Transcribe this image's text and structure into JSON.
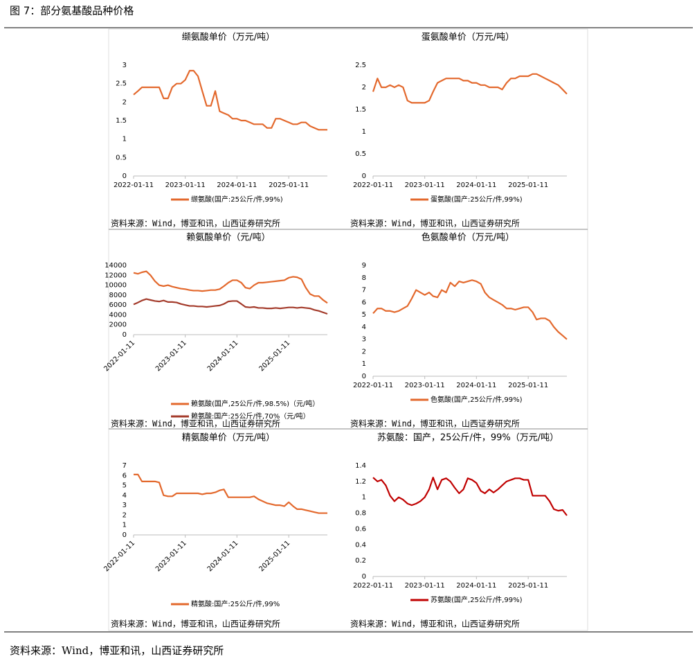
{
  "figure_title": "图 7：部分氨基酸品种价格",
  "footer": "资料来源：Wind，博亚和讯，山西证券研究所",
  "chart_data": [
    {
      "type": "line",
      "title": "缬氨酸单价（万元/吨）",
      "source": "资料来源：Wind，博亚和讯，山西证券研究所",
      "x": [
        "2022-01-11",
        "2022-02-11",
        "2022-03-11",
        "2022-04-11",
        "2022-05-11",
        "2022-06-11",
        "2022-07-11",
        "2022-08-11",
        "2022-09-11",
        "2022-10-11",
        "2022-11-11",
        "2022-12-11",
        "2023-01-11",
        "2023-02-11",
        "2023-03-11",
        "2023-04-11",
        "2023-05-11",
        "2023-06-11",
        "2023-07-11",
        "2023-08-11",
        "2023-09-11",
        "2023-10-11",
        "2023-11-11",
        "2023-12-11",
        "2024-01-11",
        "2024-02-11",
        "2024-03-11",
        "2024-04-11",
        "2024-05-11",
        "2024-06-11",
        "2024-07-11",
        "2024-08-11",
        "2024-09-11",
        "2024-10-11",
        "2024-11-11",
        "2024-12-11",
        "2025-01-11",
        "2025-02-11",
        "2025-03-11",
        "2025-04-11",
        "2025-05-11",
        "2025-06-11",
        "2025-07-11",
        "2025-08-11",
        "2025-09-11",
        "2025-10-11"
      ],
      "series": [
        {
          "name": "缬氨酸(国产:25公斤/件,99%)",
          "color": "#e3682c",
          "values": [
            2.2,
            2.3,
            2.4,
            2.4,
            2.4,
            2.4,
            2.4,
            2.1,
            2.1,
            2.4,
            2.5,
            2.5,
            2.6,
            2.85,
            2.85,
            2.7,
            2.3,
            1.9,
            1.9,
            2.3,
            1.75,
            1.7,
            1.65,
            1.55,
            1.55,
            1.5,
            1.5,
            1.45,
            1.4,
            1.4,
            1.4,
            1.3,
            1.3,
            1.55,
            1.55,
            1.5,
            1.45,
            1.4,
            1.4,
            1.45,
            1.45,
            1.35,
            1.3,
            1.25,
            1.25,
            1.25
          ]
        }
      ],
      "xlim": [
        "2022-01-11",
        "2025-10-11"
      ],
      "xticks": [
        "2022-01-11",
        "2023-01-11",
        "2024-01-11",
        "2025-01-11"
      ],
      "ylim": [
        0,
        3
      ],
      "yticks": [
        0,
        0.5,
        1,
        1.5,
        2,
        2.5,
        3
      ],
      "xtick_rotation": 0
    },
    {
      "type": "line",
      "title": "蛋氨酸单价（万元/吨）",
      "source": "资料来源：Wind，博亚和讯，山西证券研究所",
      "x": [
        "2022-01-11",
        "2022-02-11",
        "2022-03-11",
        "2022-04-11",
        "2022-05-11",
        "2022-06-11",
        "2022-07-11",
        "2022-08-11",
        "2022-09-11",
        "2022-10-11",
        "2022-11-11",
        "2022-12-11",
        "2023-01-11",
        "2023-02-11",
        "2023-03-11",
        "2023-04-11",
        "2023-05-11",
        "2023-06-11",
        "2023-07-11",
        "2023-08-11",
        "2023-09-11",
        "2023-10-11",
        "2023-11-11",
        "2023-12-11",
        "2024-01-11",
        "2024-02-11",
        "2024-03-11",
        "2024-04-11",
        "2024-05-11",
        "2024-06-11",
        "2024-07-11",
        "2024-08-11",
        "2024-09-11",
        "2024-10-11",
        "2024-11-11",
        "2024-12-11",
        "2025-01-11",
        "2025-02-11",
        "2025-03-11",
        "2025-04-11",
        "2025-05-11",
        "2025-06-11",
        "2025-07-11",
        "2025-08-11",
        "2025-09-11",
        "2025-10-11"
      ],
      "series": [
        {
          "name": "蛋氨酸(国产:25公斤/件,99%)",
          "color": "#e3682c",
          "values": [
            1.9,
            2.2,
            2.0,
            2.0,
            2.05,
            2.0,
            2.05,
            2.0,
            1.7,
            1.65,
            1.65,
            1.65,
            1.65,
            1.7,
            1.9,
            2.1,
            2.15,
            2.2,
            2.2,
            2.2,
            2.2,
            2.15,
            2.15,
            2.1,
            2.1,
            2.05,
            2.05,
            2.0,
            2.0,
            2.0,
            1.95,
            2.1,
            2.2,
            2.2,
            2.25,
            2.25,
            2.25,
            2.3,
            2.3,
            2.25,
            2.2,
            2.15,
            2.1,
            2.05,
            1.95,
            1.85
          ]
        }
      ],
      "xlim": [
        "2022-01-11",
        "2025-10-11"
      ],
      "xticks": [
        "2022-01-11",
        "2023-01-11",
        "2024-01-11",
        "2025-01-11"
      ],
      "ylim": [
        0,
        2.5
      ],
      "yticks": [
        0,
        0.5,
        1,
        1.5,
        2,
        2.5
      ],
      "xtick_rotation": 0
    },
    {
      "type": "line",
      "title": "赖氨酸单价（元/吨）",
      "source": "资料来源：Wind，博亚和讯，山西证券研究所",
      "x": [
        "2022-01-11",
        "2022-02-11",
        "2022-03-11",
        "2022-04-11",
        "2022-05-11",
        "2022-06-11",
        "2022-07-11",
        "2022-08-11",
        "2022-09-11",
        "2022-10-11",
        "2022-11-11",
        "2022-12-11",
        "2023-01-11",
        "2023-02-11",
        "2023-03-11",
        "2023-04-11",
        "2023-05-11",
        "2023-06-11",
        "2023-07-11",
        "2023-08-11",
        "2023-09-11",
        "2023-10-11",
        "2023-11-11",
        "2023-12-11",
        "2024-01-11",
        "2024-02-11",
        "2024-03-11",
        "2024-04-11",
        "2024-05-11",
        "2024-06-11",
        "2024-07-11",
        "2024-08-11",
        "2024-09-11",
        "2024-10-11",
        "2024-11-11",
        "2024-12-11",
        "2025-01-11",
        "2025-02-11",
        "2025-03-11",
        "2025-04-11",
        "2025-05-11",
        "2025-06-11",
        "2025-07-11",
        "2025-08-11",
        "2025-09-11",
        "2025-10-11"
      ],
      "series": [
        {
          "name": "赖氨酸(国产,25公斤/件,98.5%)（元/吨）",
          "color": "#e3682c",
          "values": [
            12500,
            12300,
            12600,
            12800,
            12000,
            10800,
            10000,
            9800,
            10000,
            9700,
            9500,
            9300,
            9200,
            9000,
            8900,
            8900,
            8800,
            8900,
            9000,
            9000,
            9200,
            9800,
            10500,
            11000,
            11000,
            10500,
            9500,
            9300,
            10000,
            10500,
            10500,
            10600,
            10700,
            10800,
            10900,
            11000,
            11500,
            11700,
            11600,
            11200,
            9500,
            8200,
            7800,
            7800,
            7000,
            6400
          ]
        },
        {
          "name": "赖氨酸:国产:25公斤/件,70%（元/吨）",
          "color": "#a33a2a",
          "values": [
            6100,
            6500,
            6900,
            7200,
            7000,
            6800,
            6700,
            6900,
            6600,
            6600,
            6500,
            6200,
            6000,
            5800,
            5800,
            5700,
            5700,
            5600,
            5700,
            5800,
            5900,
            6200,
            6700,
            6800,
            6800,
            6200,
            5600,
            5500,
            5600,
            5400,
            5400,
            5300,
            5300,
            5400,
            5300,
            5400,
            5500,
            5500,
            5400,
            5500,
            5400,
            5300,
            5000,
            4800,
            4500,
            4200
          ]
        }
      ],
      "xlim": [
        "2022-01-11",
        "2025-10-11"
      ],
      "xticks": [
        "2022-01-11",
        "2023-01-11",
        "2024-01-11",
        "2025-01-11"
      ],
      "ylim": [
        0,
        14000
      ],
      "yticks": [
        0,
        2000,
        4000,
        6000,
        8000,
        10000,
        12000,
        14000
      ],
      "xtick_rotation": 45
    },
    {
      "type": "line",
      "title": "色氨酸单价（万元/吨）",
      "source": "资料来源：Wind，博亚和讯，山西证券研究所",
      "x": [
        "2022-01-11",
        "2022-02-11",
        "2022-03-11",
        "2022-04-11",
        "2022-05-11",
        "2022-06-11",
        "2022-07-11",
        "2022-08-11",
        "2022-09-11",
        "2022-10-11",
        "2022-11-11",
        "2022-12-11",
        "2023-01-11",
        "2023-02-11",
        "2023-03-11",
        "2023-04-11",
        "2023-05-11",
        "2023-06-11",
        "2023-07-11",
        "2023-08-11",
        "2023-09-11",
        "2023-10-11",
        "2023-11-11",
        "2023-12-11",
        "2024-01-11",
        "2024-02-11",
        "2024-03-11",
        "2024-04-11",
        "2024-05-11",
        "2024-06-11",
        "2024-07-11",
        "2024-08-11",
        "2024-09-11",
        "2024-10-11",
        "2024-11-11",
        "2024-12-11",
        "2025-01-11",
        "2025-02-11",
        "2025-03-11",
        "2025-04-11",
        "2025-05-11",
        "2025-06-11",
        "2025-07-11",
        "2025-08-11",
        "2025-09-11",
        "2025-10-11"
      ],
      "series": [
        {
          "name": "色氨酸(国产,25公斤/件,99%)",
          "color": "#e3682c",
          "values": [
            5.1,
            5.5,
            5.5,
            5.3,
            5.3,
            5.2,
            5.3,
            5.5,
            5.7,
            6.3,
            7.0,
            6.8,
            6.6,
            6.8,
            6.5,
            6.4,
            7.0,
            6.8,
            7.6,
            7.3,
            7.7,
            7.6,
            7.7,
            7.8,
            7.7,
            7.5,
            6.8,
            6.4,
            6.2,
            6.0,
            5.8,
            5.5,
            5.5,
            5.4,
            5.5,
            5.6,
            5.6,
            5.2,
            4.6,
            4.7,
            4.7,
            4.5,
            4.0,
            3.6,
            3.3,
            3.0
          ]
        }
      ],
      "xlim": [
        "2022-01-11",
        "2025-10-11"
      ],
      "xticks": [
        "2022-01-11",
        "2023-01-11",
        "2024-01-11",
        "2025-01-11"
      ],
      "ylim": [
        0,
        9
      ],
      "yticks": [
        0,
        1,
        2,
        3,
        4,
        5,
        6,
        7,
        8,
        9
      ],
      "xtick_rotation": 0
    },
    {
      "type": "line",
      "title": "精氨酸单价（万元/吨）",
      "source": "资料来源：Wind，博亚和讯，山西证券研究所",
      "x": [
        "2022-01-11",
        "2022-02-11",
        "2022-03-11",
        "2022-04-11",
        "2022-05-11",
        "2022-06-11",
        "2022-07-11",
        "2022-08-11",
        "2022-09-11",
        "2022-10-11",
        "2022-11-11",
        "2022-12-11",
        "2023-01-11",
        "2023-02-11",
        "2023-03-11",
        "2023-04-11",
        "2023-05-11",
        "2023-06-11",
        "2023-07-11",
        "2023-08-11",
        "2023-09-11",
        "2023-10-11",
        "2023-11-11",
        "2023-12-11",
        "2024-01-11",
        "2024-02-11",
        "2024-03-11",
        "2024-04-11",
        "2024-05-11",
        "2024-06-11",
        "2024-07-11",
        "2024-08-11",
        "2024-09-11",
        "2024-10-11",
        "2024-11-11",
        "2024-12-11",
        "2025-01-11",
        "2025-02-11",
        "2025-03-11",
        "2025-04-11",
        "2025-05-11",
        "2025-06-11",
        "2025-07-11",
        "2025-08-11",
        "2025-09-11",
        "2025-10-11"
      ],
      "series": [
        {
          "name": "精氨酸:国产:25公斤/件,99%",
          "color": "#e3682c",
          "values": [
            6.1,
            6.1,
            5.4,
            5.4,
            5.4,
            5.4,
            5.3,
            4.0,
            3.9,
            3.9,
            4.2,
            4.2,
            4.2,
            4.2,
            4.2,
            4.2,
            4.1,
            4.2,
            4.2,
            4.3,
            4.5,
            4.6,
            3.8,
            3.8,
            3.8,
            3.8,
            3.8,
            3.8,
            3.9,
            3.6,
            3.4,
            3.2,
            3.1,
            3.0,
            3.0,
            2.9,
            3.3,
            2.9,
            2.6,
            2.6,
            2.5,
            2.4,
            2.3,
            2.2,
            2.2,
            2.2
          ]
        }
      ],
      "xlim": [
        "2022-01-11",
        "2025-10-11"
      ],
      "xticks": [
        "2022-01-11",
        "2023-01-11",
        "2024-01-11",
        "2025-01-11"
      ],
      "ylim": [
        0,
        7
      ],
      "yticks": [
        0,
        1,
        2,
        3,
        4,
        5,
        6,
        7
      ],
      "xtick_rotation": 45
    },
    {
      "type": "line",
      "title": "苏氨酸：国产，25公斤/件，99%（万元/吨）",
      "source": "资料来源：Wind，博亚和讯，山西证券研究所",
      "x": [
        "2022-01-11",
        "2022-02-11",
        "2022-03-11",
        "2022-04-11",
        "2022-05-11",
        "2022-06-11",
        "2022-07-11",
        "2022-08-11",
        "2022-09-11",
        "2022-10-11",
        "2022-11-11",
        "2022-12-11",
        "2023-01-11",
        "2023-02-11",
        "2023-03-11",
        "2023-04-11",
        "2023-05-11",
        "2023-06-11",
        "2023-07-11",
        "2023-08-11",
        "2023-09-11",
        "2023-10-11",
        "2023-11-11",
        "2023-12-11",
        "2024-01-11",
        "2024-02-11",
        "2024-03-11",
        "2024-04-11",
        "2024-05-11",
        "2024-06-11",
        "2024-07-11",
        "2024-08-11",
        "2024-09-11",
        "2024-10-11",
        "2024-11-11",
        "2024-12-11",
        "2025-01-11",
        "2025-02-11",
        "2025-03-11",
        "2025-04-11",
        "2025-05-11",
        "2025-06-11",
        "2025-07-11",
        "2025-08-11",
        "2025-09-11",
        "2025-10-11"
      ],
      "series": [
        {
          "name": "苏氨酸(国产,25公斤/件,99%)",
          "color": "#c00000",
          "values": [
            1.25,
            1.2,
            1.22,
            1.15,
            1.02,
            0.95,
            1.0,
            0.97,
            0.92,
            0.9,
            0.92,
            0.95,
            1.0,
            1.1,
            1.25,
            1.1,
            1.22,
            1.24,
            1.2,
            1.12,
            1.05,
            1.1,
            1.24,
            1.22,
            1.18,
            1.08,
            1.05,
            1.1,
            1.06,
            1.1,
            1.15,
            1.2,
            1.22,
            1.24,
            1.24,
            1.22,
            1.22,
            1.02,
            1.02,
            1.02,
            1.02,
            0.95,
            0.85,
            0.83,
            0.84,
            0.77
          ]
        }
      ],
      "xlim": [
        "2022-01-11",
        "2025-10-11"
      ],
      "xticks": [
        "2022-01-11",
        "2023-01-11",
        "2024-01-11",
        "2025-01-11"
      ],
      "ylim": [
        0,
        1.4
      ],
      "yticks": [
        0,
        0.2,
        0.4,
        0.6,
        0.8,
        1,
        1.2,
        1.4
      ],
      "xtick_rotation": 0
    }
  ]
}
